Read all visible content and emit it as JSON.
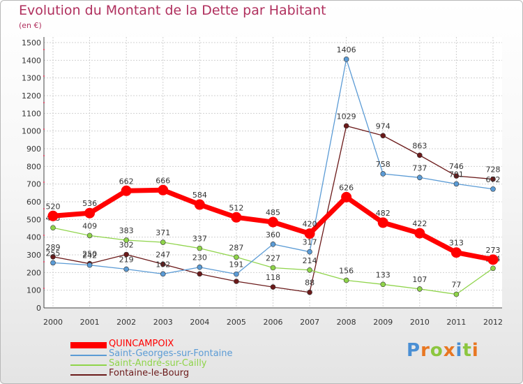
{
  "title": "Evolution du Montant de la Dette par Habitant",
  "subtitle": "(en €)",
  "brand": {
    "text": "Proxiti",
    "letter_colors": [
      "#4a8fd4",
      "#e87722",
      "#8cc63f",
      "#e87722",
      "#4a8fd4",
      "#8cc63f",
      "#e87722"
    ]
  },
  "chart_data": {
    "type": "line",
    "x": [
      "2000",
      "2001",
      "2002",
      "2003",
      "2004",
      "2005",
      "2006",
      "2007",
      "2008",
      "2009",
      "2010",
      "2011",
      "2012"
    ],
    "ylim": [
      0,
      1500
    ],
    "yticks": [
      0,
      100,
      200,
      300,
      400,
      500,
      600,
      700,
      800,
      900,
      1000,
      1100,
      1200,
      1300,
      1400,
      1500
    ],
    "grid": true,
    "legend_position": "bottom-left",
    "series": [
      {
        "name": "Fontaine-le-Bourg",
        "color": "#6b1a1a",
        "values": [
          289,
          250,
          302,
          247,
          192,
          150,
          118,
          88,
          1029,
          974,
          863,
          746,
          728
        ],
        "labels": [
          "289",
          "250",
          "302",
          "247",
          "",
          "",
          "118",
          "88",
          "1029",
          "974",
          "863",
          "746",
          "728"
        ]
      },
      {
        "name": "Saint-André-sur-Cailly",
        "color": "#8fd44a",
        "values": [
          453,
          409,
          383,
          371,
          337,
          287,
          227,
          214,
          156,
          133,
          107,
          77,
          224
        ],
        "labels": [
          "453",
          "409",
          "383",
          "371",
          "337",
          "287",
          "227",
          "214",
          "156",
          "133",
          "107",
          "77",
          "224"
        ]
      },
      {
        "name": "Saint-Georges-sur-Fontaine",
        "color": "#5b9bd5",
        "values": [
          255,
          242,
          219,
          192,
          230,
          191,
          360,
          317,
          1406,
          758,
          737,
          701,
          672
        ],
        "labels": [
          "255",
          "242",
          "219",
          "192",
          "230",
          "191",
          "360",
          "317",
          "1406",
          "758",
          "737",
          "701",
          "672"
        ]
      },
      {
        "name": "QUINCAMPOIX",
        "color": "#ff0000",
        "values": [
          520,
          536,
          662,
          666,
          584,
          512,
          485,
          420,
          626,
          482,
          422,
          313,
          273
        ],
        "labels": [
          "520",
          "536",
          "662",
          "666",
          "584",
          "512",
          "485",
          "420",
          "626",
          "482",
          "422",
          "313",
          "273"
        ]
      }
    ]
  },
  "legend": [
    {
      "name": "QUINCAMPOIX",
      "color": "#ff0000",
      "thick": true
    },
    {
      "name": "Saint-Georges-sur-Fontaine",
      "color": "#5b9bd5",
      "thick": false
    },
    {
      "name": "Saint-André-sur-Cailly",
      "color": "#8fd44a",
      "thick": false
    },
    {
      "name": "Fontaine-le-Bourg",
      "color": "#6b1a1a",
      "thick": false
    }
  ]
}
